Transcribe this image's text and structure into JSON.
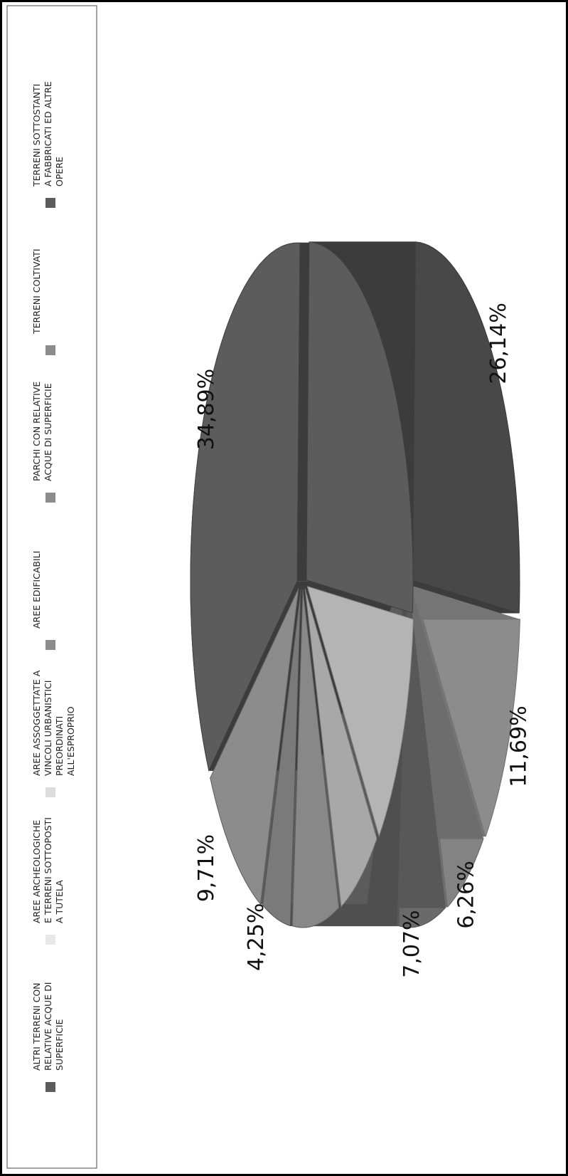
{
  "chart_data": {
    "type": "pie",
    "slices": [
      {
        "label": "TERRENI SOTTOSTANTI A FABBRICATI ED ALTRE OPERE",
        "value": 26.14,
        "value_label": "26,14%",
        "color": "#5c5c5c"
      },
      {
        "label": "TERRENI COLTIVATI",
        "value": 11.69,
        "value_label": "11,69%",
        "color": "#b4b4b4"
      },
      {
        "label": "PARCHI CON RELATIVE ACQUE DI SUPERFICIE",
        "value": 6.26,
        "value_label": "6,26%",
        "color": "#a8a8a8"
      },
      {
        "label": "AREE EDIFICABILI",
        "value": 7.07,
        "value_label": "7,07%",
        "color": "#888888"
      },
      {
        "label": "AREE ASSOGGETTATE A VINCOLI URBANISTICI PREORDINATI ALL'ESPROPRIO",
        "value": 4.25,
        "value_label": "4,25%",
        "color": "#7a7a7a"
      },
      {
        "label": "AREE ARCHEOLOGICHE E TERRENI SOTTOPOSTI A TUTELA",
        "value": 9.71,
        "value_label": "9,71%",
        "color": "#8c8c8c"
      },
      {
        "label": "ALTRI TERRENI CON RELATIVE ACQUE DI SUPERFICIE",
        "value": 34.89,
        "value_label": "34,89%",
        "color": "#5c5c5c"
      }
    ],
    "legend": {
      "placement": "left",
      "items": [
        {
          "lines": [
            "ALTRI TERRENI CON",
            "RELATIVE ACQUE DI",
            "SUPERFICIE"
          ],
          "color": "#5c5c5c"
        },
        {
          "lines": [
            "AREE ARCHEOLOGICHE",
            "E TERRENI SOTTOPOSTI",
            "A TUTELA"
          ],
          "color": "#e8e8e8"
        },
        {
          "lines": [
            "AREE ASSOGGETTATE A",
            "VINCOLI URBANISTICI",
            "PREORDINATI",
            "ALL'ESPROPRIO"
          ],
          "color": "#dcdcdc"
        },
        {
          "lines": [
            "AREE EDIFICABILI"
          ],
          "color": "#8c8c8c"
        },
        {
          "lines": [
            "PARCHI CON RELATIVE",
            "ACQUE DI SUPERFICIE"
          ],
          "color": "#8c8c8c"
        },
        {
          "lines": [
            "TERRENI COLTIVATI"
          ],
          "color": "#8c8c8c"
        },
        {
          "lines": [
            "TERRENI SOTTOSTANTI",
            "A FABBRICATI ED ALTRE",
            "OPERE"
          ],
          "color": "#5c5c5c"
        }
      ]
    }
  }
}
